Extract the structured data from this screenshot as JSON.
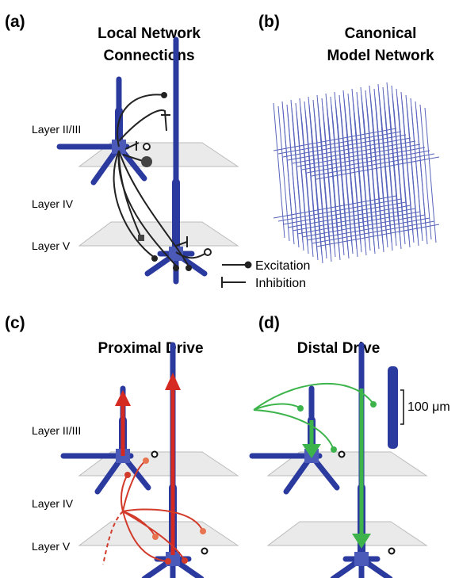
{
  "panels": [
    {
      "label": "(a)",
      "title": [
        "Local Network",
        "Connections"
      ],
      "layers": [
        "Layer II/III",
        "Layer IV",
        "Layer V"
      ]
    },
    {
      "label": "(b)",
      "title": [
        "Canonical",
        "Model Network"
      ]
    },
    {
      "label": "(c)",
      "title": [
        "Proximal Drive"
      ],
      "layers": [
        "Layer II/III",
        "Layer IV",
        "Layer V"
      ]
    },
    {
      "label": "(d)",
      "title": [
        "Distal Drive"
      ]
    }
  ],
  "legend": [
    "Excitation",
    "Inhibition"
  ],
  "scale_bar": "100 μm"
}
